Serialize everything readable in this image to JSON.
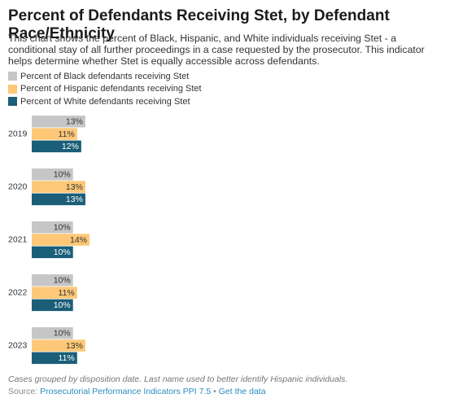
{
  "chart_data": {
    "type": "bar",
    "title": "Percent of Defendants Receiving Stet, by Defendant Race/Ethnicity",
    "subtitle": "This chart shows the percent of Black, Hispanic, and White individuals receiving Stet - a conditional stay of all further proceedings in a case requested by the prosecutor. This indicator helps determine whether Stet is equally accessible across defendants.",
    "categories": [
      "2019",
      "2020",
      "2021",
      "2022",
      "2023"
    ],
    "series": [
      {
        "name": "Percent of Black defendants receiving Stet",
        "color": "#c6c6c6",
        "values": [
          13,
          10,
          10,
          10,
          10
        ],
        "value_labels": [
          "13%",
          "10%",
          "10%",
          "10%",
          "10%"
        ]
      },
      {
        "name": "Percent of Hispanic defendants receiving Stet",
        "color": "#fec878",
        "values": [
          11,
          13,
          14,
          11,
          13
        ],
        "value_labels": [
          "11%",
          "13%",
          "14%",
          "11%",
          "13%"
        ]
      },
      {
        "name": "Percent of White defendants receiving Stet",
        "color": "#1b5e78",
        "values": [
          12,
          13,
          10,
          10,
          11
        ],
        "value_labels": [
          "12%",
          "13%",
          "10%",
          "10%",
          "11%"
        ]
      }
    ],
    "note": "Cases grouped by disposition date. Last name used to better identify Hispanic individuals.",
    "source_label": "Source:",
    "source": "Prosecutorial Performance Indicators PPI 7.5",
    "separator": "•",
    "data_link": "Get the data"
  }
}
